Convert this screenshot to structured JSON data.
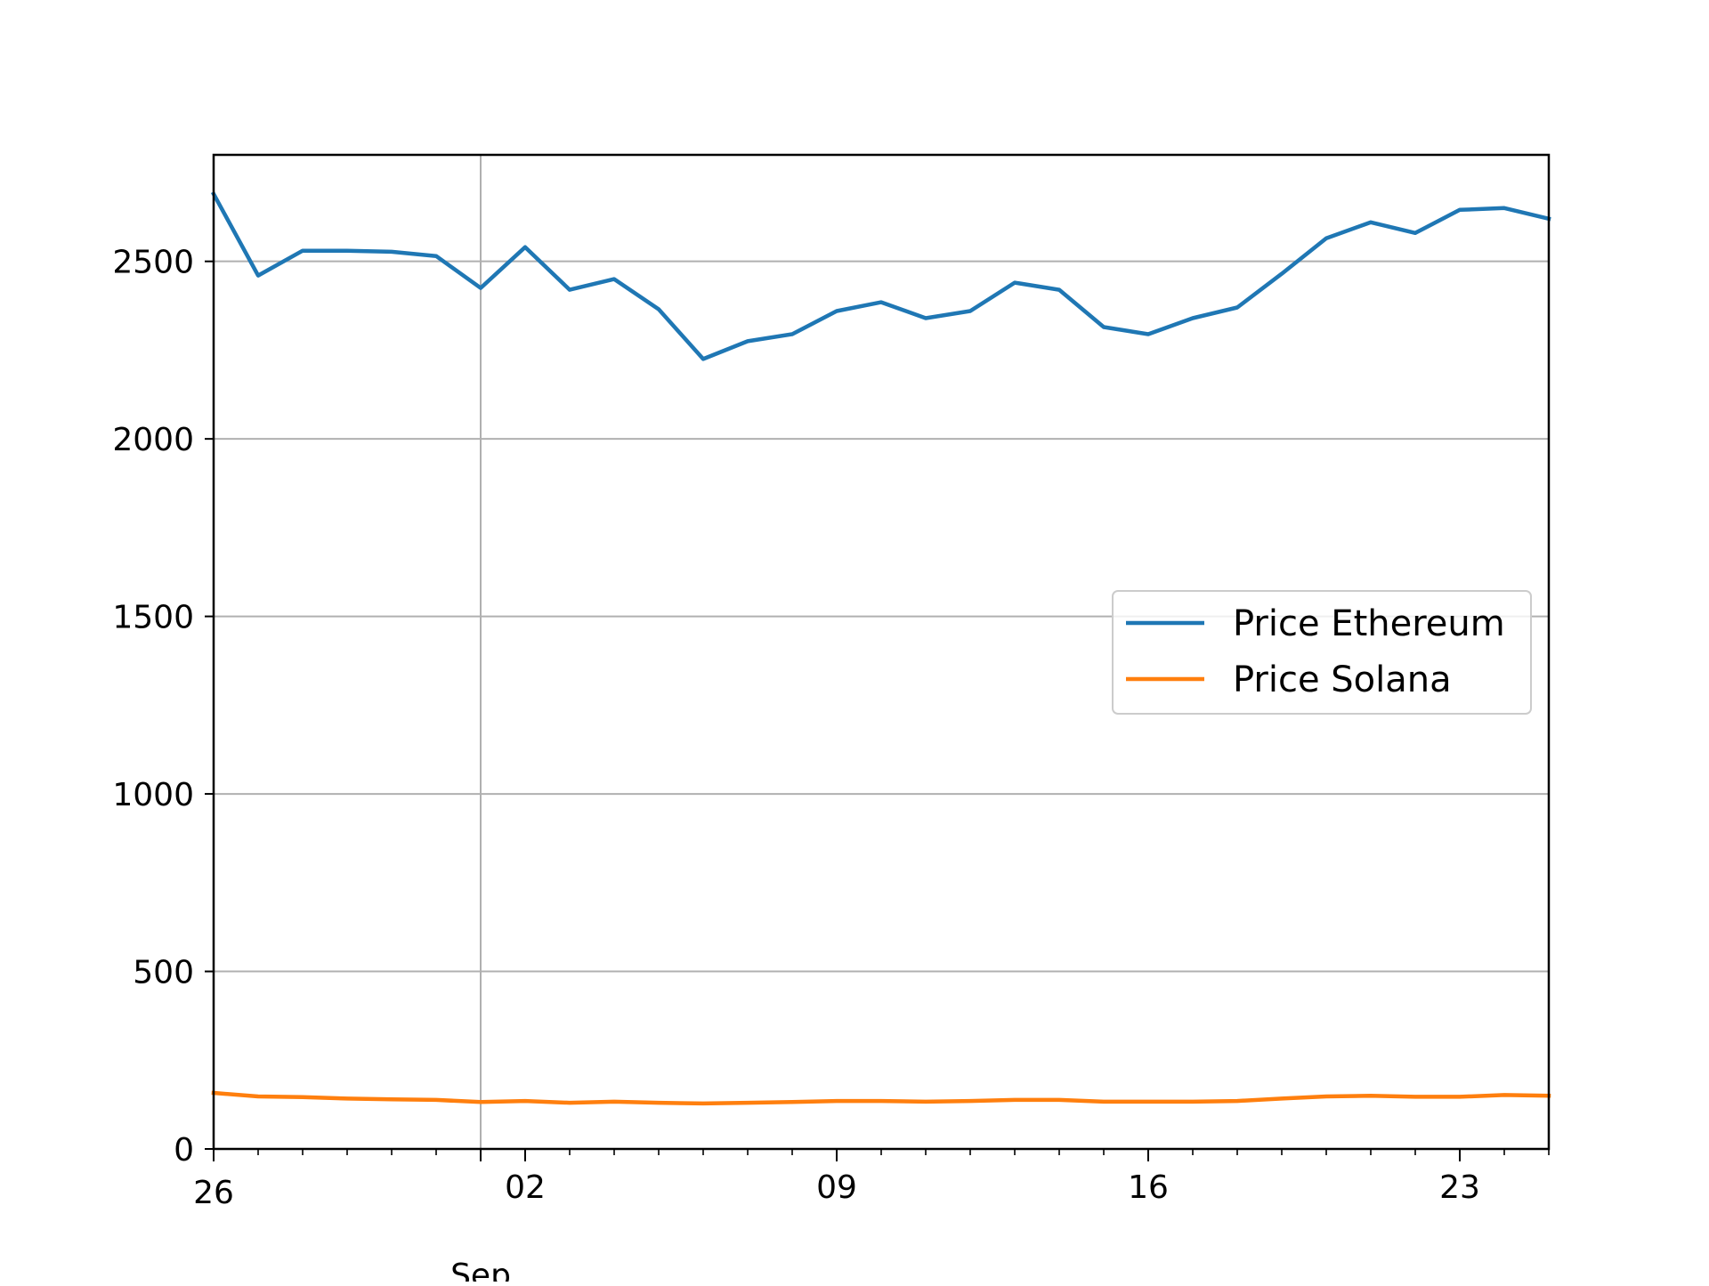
{
  "chart_data": {
    "type": "line",
    "x": [
      "2024-08-26",
      "2024-08-27",
      "2024-08-28",
      "2024-08-29",
      "2024-08-30",
      "2024-08-31",
      "2024-09-01",
      "2024-09-02",
      "2024-09-03",
      "2024-09-04",
      "2024-09-05",
      "2024-09-06",
      "2024-09-07",
      "2024-09-08",
      "2024-09-09",
      "2024-09-10",
      "2024-09-11",
      "2024-09-12",
      "2024-09-13",
      "2024-09-14",
      "2024-09-15",
      "2024-09-16",
      "2024-09-17",
      "2024-09-18",
      "2024-09-19",
      "2024-09-20",
      "2024-09-21",
      "2024-09-22",
      "2024-09-23",
      "2024-09-24",
      "2024-09-25"
    ],
    "series": [
      {
        "name": "Price Ethereum",
        "color": "#1f77b4",
        "values": [
          2690,
          2460,
          2530,
          2530,
          2527,
          2515,
          2425,
          2540,
          2420,
          2450,
          2365,
          2225,
          2275,
          2295,
          2360,
          2385,
          2340,
          2360,
          2440,
          2420,
          2315,
          2295,
          2340,
          2370,
          2465,
          2565,
          2610,
          2580,
          2645,
          2650,
          2620
        ]
      },
      {
        "name": "Price Solana",
        "color": "#ff7f0e",
        "values": [
          158,
          148,
          146,
          142,
          140,
          138,
          132,
          135,
          130,
          133,
          130,
          128,
          130,
          132,
          135,
          135,
          133,
          135,
          138,
          138,
          133,
          133,
          133,
          135,
          142,
          148,
          150,
          147,
          147,
          152,
          150
        ]
      }
    ],
    "ylim": [
      0,
      2800
    ],
    "yticks": [
      0,
      500,
      1000,
      1500,
      2000,
      2500
    ],
    "xticks": [
      {
        "date": "2024-08-26",
        "label": "26"
      },
      {
        "date": "2024-09-02",
        "label": "02"
      },
      {
        "date": "2024-09-09",
        "label": "09"
      },
      {
        "date": "2024-09-16",
        "label": "16"
      },
      {
        "date": "2024-09-23",
        "label": "23"
      }
    ],
    "month_label": {
      "date": "2024-09-01",
      "label": "Sep"
    },
    "grid": true,
    "legend_position": "center-right"
  }
}
